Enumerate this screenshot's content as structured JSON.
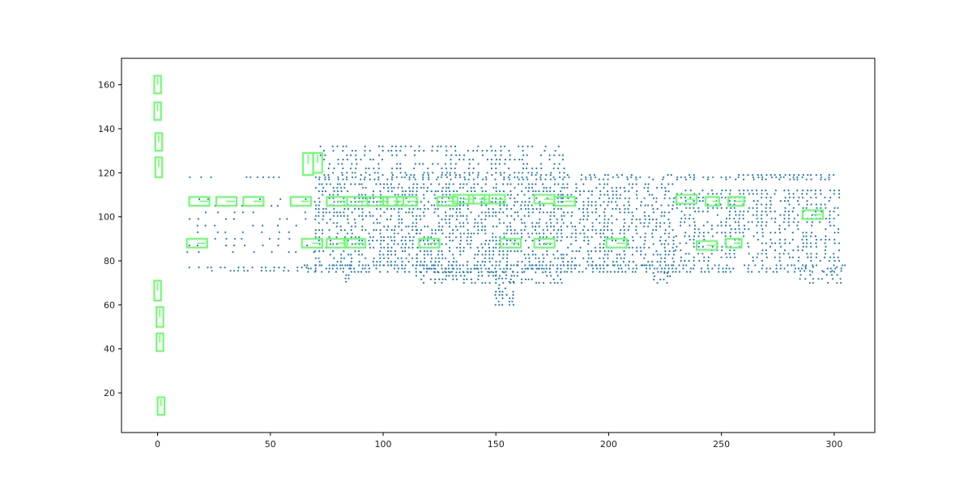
{
  "chart_data": {
    "type": "scatter",
    "title": "",
    "xlabel": "",
    "ylabel": "",
    "xlim": [
      -16,
      318
    ],
    "ylim": [
      2,
      172
    ],
    "grid": false,
    "xticks": [
      0,
      50,
      100,
      150,
      200,
      250,
      300
    ],
    "yticks": [
      20,
      40,
      60,
      80,
      100,
      120,
      140,
      160
    ],
    "colors": {
      "points": "#1f77b4",
      "boxes": "#66ff66",
      "axes": "#000000"
    },
    "point_clusters": [
      {
        "x": [
          14,
          70
        ],
        "y": [
          75.5,
          77
        ],
        "step": [
          2,
          1.5
        ]
      },
      {
        "x": [
          14,
          70
        ],
        "y": [
          118,
          118
        ],
        "step": [
          2.5,
          1
        ]
      },
      {
        "x": [
          14,
          70
        ],
        "y": [
          84,
          110
        ],
        "step": [
          4,
          3
        ]
      },
      {
        "x": [
          65,
          305
        ],
        "y": [
          75,
          78
        ],
        "step": [
          1.6,
          1.5
        ]
      },
      {
        "x": [
          70,
          300
        ],
        "y": [
          117,
          119
        ],
        "step": [
          2,
          1
        ]
      },
      {
        "x": [
          72,
          180
        ],
        "y": [
          120,
          132
        ],
        "step": [
          2,
          2
        ]
      },
      {
        "x": [
          70,
          115
        ],
        "y": [
          78,
          116
        ],
        "step": [
          1.6,
          1.6
        ]
      },
      {
        "x": [
          115,
          180
        ],
        "y": [
          70,
          116
        ],
        "step": [
          1.6,
          1.6
        ]
      },
      {
        "x": [
          180,
          230
        ],
        "y": [
          78,
          116
        ],
        "step": [
          1.8,
          1.6
        ]
      },
      {
        "x": [
          230,
          303
        ],
        "y": [
          80,
          112
        ],
        "step": [
          2,
          1.6
        ]
      },
      {
        "x": [
          150,
          158
        ],
        "y": [
          60,
          75
        ],
        "step": [
          1.5,
          1.5
        ]
      },
      {
        "x": [
          82,
          86
        ],
        "y": [
          66,
          78
        ],
        "step": [
          1.5,
          1.5
        ]
      },
      {
        "x": [
          220,
          228
        ],
        "y": [
          70,
          75
        ],
        "step": [
          1.5,
          1.5
        ]
      },
      {
        "x": [
          285,
          304
        ],
        "y": [
          70,
          78
        ],
        "step": [
          2,
          1.8
        ]
      }
    ],
    "boxes": [
      {
        "x0": -1.5,
        "x1": 1.5,
        "y0": 156,
        "y1": 164
      },
      {
        "x0": -1.5,
        "x1": 1.5,
        "y0": 144,
        "y1": 152
      },
      {
        "x0": -1,
        "x1": 2,
        "y0": 130,
        "y1": 138
      },
      {
        "x0": -1,
        "x1": 2,
        "y0": 118,
        "y1": 127
      },
      {
        "x0": -1.5,
        "x1": 1.5,
        "y0": 62,
        "y1": 71
      },
      {
        "x0": -0.5,
        "x1": 2.5,
        "y0": 50,
        "y1": 59
      },
      {
        "x0": -0.5,
        "x1": 2.5,
        "y0": 39,
        "y1": 47
      },
      {
        "x0": 0,
        "x1": 3,
        "y0": 10,
        "y1": 18
      },
      {
        "x0": 64.5,
        "x1": 69,
        "y0": 119,
        "y1": 129
      },
      {
        "x0": 69,
        "x1": 73,
        "y0": 120,
        "y1": 129
      },
      {
        "x0": 14,
        "x1": 23,
        "y0": 105,
        "y1": 109
      },
      {
        "x0": 26,
        "x1": 35,
        "y0": 105,
        "y1": 109
      },
      {
        "x0": 38,
        "x1": 47,
        "y0": 105,
        "y1": 109
      },
      {
        "x0": 59,
        "x1": 68,
        "y0": 105,
        "y1": 109
      },
      {
        "x0": 75,
        "x1": 84,
        "y0": 105,
        "y1": 109
      },
      {
        "x0": 84,
        "x1": 93,
        "y0": 105,
        "y1": 109
      },
      {
        "x0": 93,
        "x1": 102,
        "y0": 105,
        "y1": 109
      },
      {
        "x0": 100,
        "x1": 109,
        "y0": 105,
        "y1": 109
      },
      {
        "x0": 106,
        "x1": 115,
        "y0": 105,
        "y1": 109
      },
      {
        "x0": 124,
        "x1": 133,
        "y0": 105,
        "y1": 109
      },
      {
        "x0": 131,
        "x1": 140,
        "y0": 106,
        "y1": 110
      },
      {
        "x0": 138,
        "x1": 147,
        "y0": 106,
        "y1": 110
      },
      {
        "x0": 145,
        "x1": 154,
        "y0": 106,
        "y1": 110
      },
      {
        "x0": 167,
        "x1": 176,
        "y0": 106,
        "y1": 110
      },
      {
        "x0": 176,
        "x1": 185,
        "y0": 105,
        "y1": 109
      },
      {
        "x0": 230,
        "x1": 239,
        "y0": 106,
        "y1": 110
      },
      {
        "x0": 243,
        "x1": 249,
        "y0": 105,
        "y1": 109
      },
      {
        "x0": 253,
        "x1": 260,
        "y0": 105,
        "y1": 109
      },
      {
        "x0": 286,
        "x1": 295,
        "y0": 99,
        "y1": 103
      },
      {
        "x0": 13,
        "x1": 22,
        "y0": 86,
        "y1": 90
      },
      {
        "x0": 64,
        "x1": 73,
        "y0": 86,
        "y1": 90
      },
      {
        "x0": 75,
        "x1": 84,
        "y0": 86,
        "y1": 90
      },
      {
        "x0": 83,
        "x1": 92,
        "y0": 86,
        "y1": 90
      },
      {
        "x0": 116,
        "x1": 125,
        "y0": 86,
        "y1": 90
      },
      {
        "x0": 152,
        "x1": 161,
        "y0": 86,
        "y1": 90
      },
      {
        "x0": 167,
        "x1": 176,
        "y0": 86,
        "y1": 90
      },
      {
        "x0": 199,
        "x1": 208,
        "y0": 86,
        "y1": 90
      },
      {
        "x0": 239,
        "x1": 248,
        "y0": 85,
        "y1": 89
      },
      {
        "x0": 252,
        "x1": 259,
        "y0": 86,
        "y1": 90
      }
    ]
  }
}
